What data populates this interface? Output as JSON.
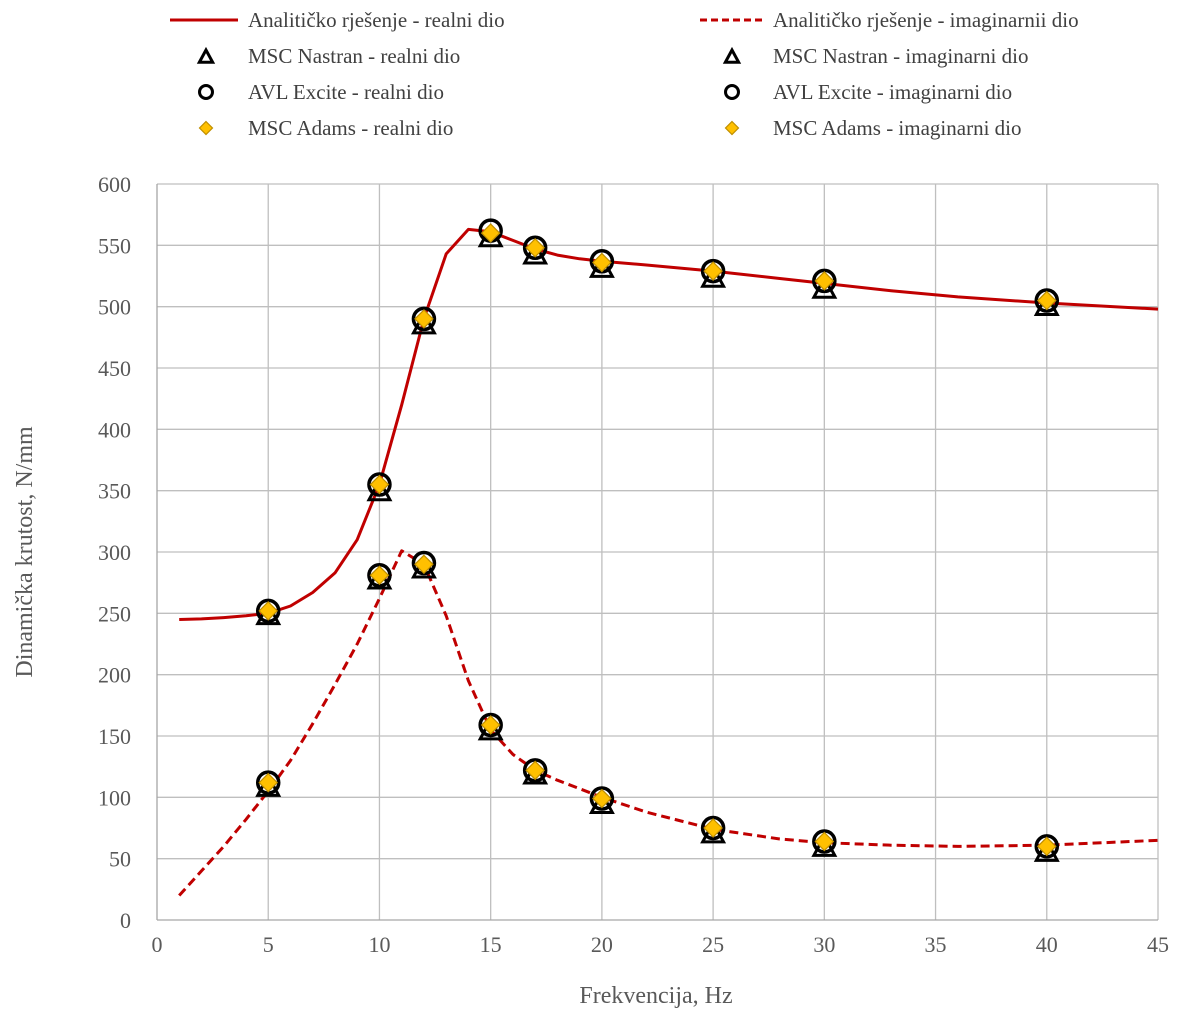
{
  "chart_data": {
    "type": "line",
    "title": "",
    "xlabel": "Frekvencija, Hz",
    "ylabel": "Dinamička krutost, N/mm",
    "xlim": [
      0,
      45
    ],
    "ylim": [
      0,
      600
    ],
    "xticks": [
      "0",
      "5",
      "10",
      "15",
      "20",
      "25",
      "30",
      "35",
      "40",
      "45"
    ],
    "yticks": [
      "0",
      "50",
      "100",
      "150",
      "200",
      "250",
      "300",
      "350",
      "400",
      "450",
      "500",
      "550",
      "600"
    ],
    "grid": true,
    "legend_position": "top",
    "colors": {
      "analytic": "#c00000",
      "adams_fill": "#ffc000",
      "adams_stroke": "#bf8f00",
      "markers": "#000000",
      "grid": "#bfbfbf"
    },
    "series": [
      {
        "name": "Analitičko rješenje - realni dio",
        "style": "solid-line",
        "x": [
          1,
          2,
          3,
          4,
          5,
          6,
          7,
          8,
          9,
          10,
          11,
          12,
          13,
          14,
          15,
          16,
          17,
          18,
          19,
          20,
          22,
          25,
          28,
          30,
          33,
          36,
          40,
          45
        ],
        "values": [
          245,
          245.5,
          246.5,
          248,
          250,
          256,
          267,
          283,
          310,
          355,
          420,
          490,
          543,
          563,
          561,
          554,
          547,
          542,
          539,
          537,
          534,
          529,
          523,
          519,
          513,
          508,
          503,
          498
        ]
      },
      {
        "name": "Analitičko rješenje - imaginarnii dio",
        "style": "dashed-line",
        "x": [
          1,
          2,
          3,
          4,
          5,
          6,
          7,
          8,
          9,
          10,
          11,
          12,
          13,
          14,
          15,
          16,
          17,
          18,
          19,
          20,
          22,
          25,
          28,
          30,
          33,
          36,
          40,
          45
        ],
        "values": [
          20,
          40,
          60,
          82,
          105,
          130,
          160,
          192,
          225,
          262,
          301,
          290,
          248,
          195,
          155,
          135,
          122,
          114,
          107,
          100,
          88,
          74,
          66,
          63,
          61,
          60,
          61,
          65
        ]
      },
      {
        "name": "MSC Nastran - realni dio",
        "style": "triangle",
        "x": [
          5,
          10,
          12,
          15,
          17,
          20,
          25,
          30,
          40
        ],
        "values": [
          250,
          351,
          487,
          558,
          544,
          533,
          525,
          516,
          502
        ]
      },
      {
        "name": "MSC Nastran - imaginarni dio",
        "style": "triangle",
        "x": [
          5,
          10,
          12,
          15,
          17,
          20,
          25,
          30,
          40
        ],
        "values": [
          110,
          279,
          288,
          156,
          120,
          96,
          72,
          61,
          57
        ]
      },
      {
        "name": "AVL Excite - realni dio",
        "style": "circle",
        "x": [
          5,
          10,
          12,
          15,
          17,
          20,
          25,
          30,
          40
        ],
        "values": [
          252,
          355,
          490,
          562,
          548,
          537,
          529,
          521,
          505
        ]
      },
      {
        "name": "AVL Excite - imaginarni dio",
        "style": "circle",
        "x": [
          5,
          10,
          12,
          15,
          17,
          20,
          25,
          30,
          40
        ],
        "values": [
          112,
          281,
          291,
          159,
          122,
          99,
          75,
          64,
          60
        ]
      },
      {
        "name": "MSC Adams - realni dio",
        "style": "diamond",
        "x": [
          5,
          10,
          12,
          15,
          17,
          20,
          25,
          30,
          40
        ],
        "values": [
          252,
          355,
          490,
          560,
          548,
          536,
          529,
          521,
          505
        ]
      },
      {
        "name": "MSC Adams - imaginarni dio",
        "style": "diamond",
        "x": [
          5,
          10,
          12,
          15,
          17,
          20,
          25,
          30,
          40
        ],
        "values": [
          112,
          281,
          290,
          159,
          122,
          99,
          75,
          64,
          60
        ]
      }
    ]
  }
}
